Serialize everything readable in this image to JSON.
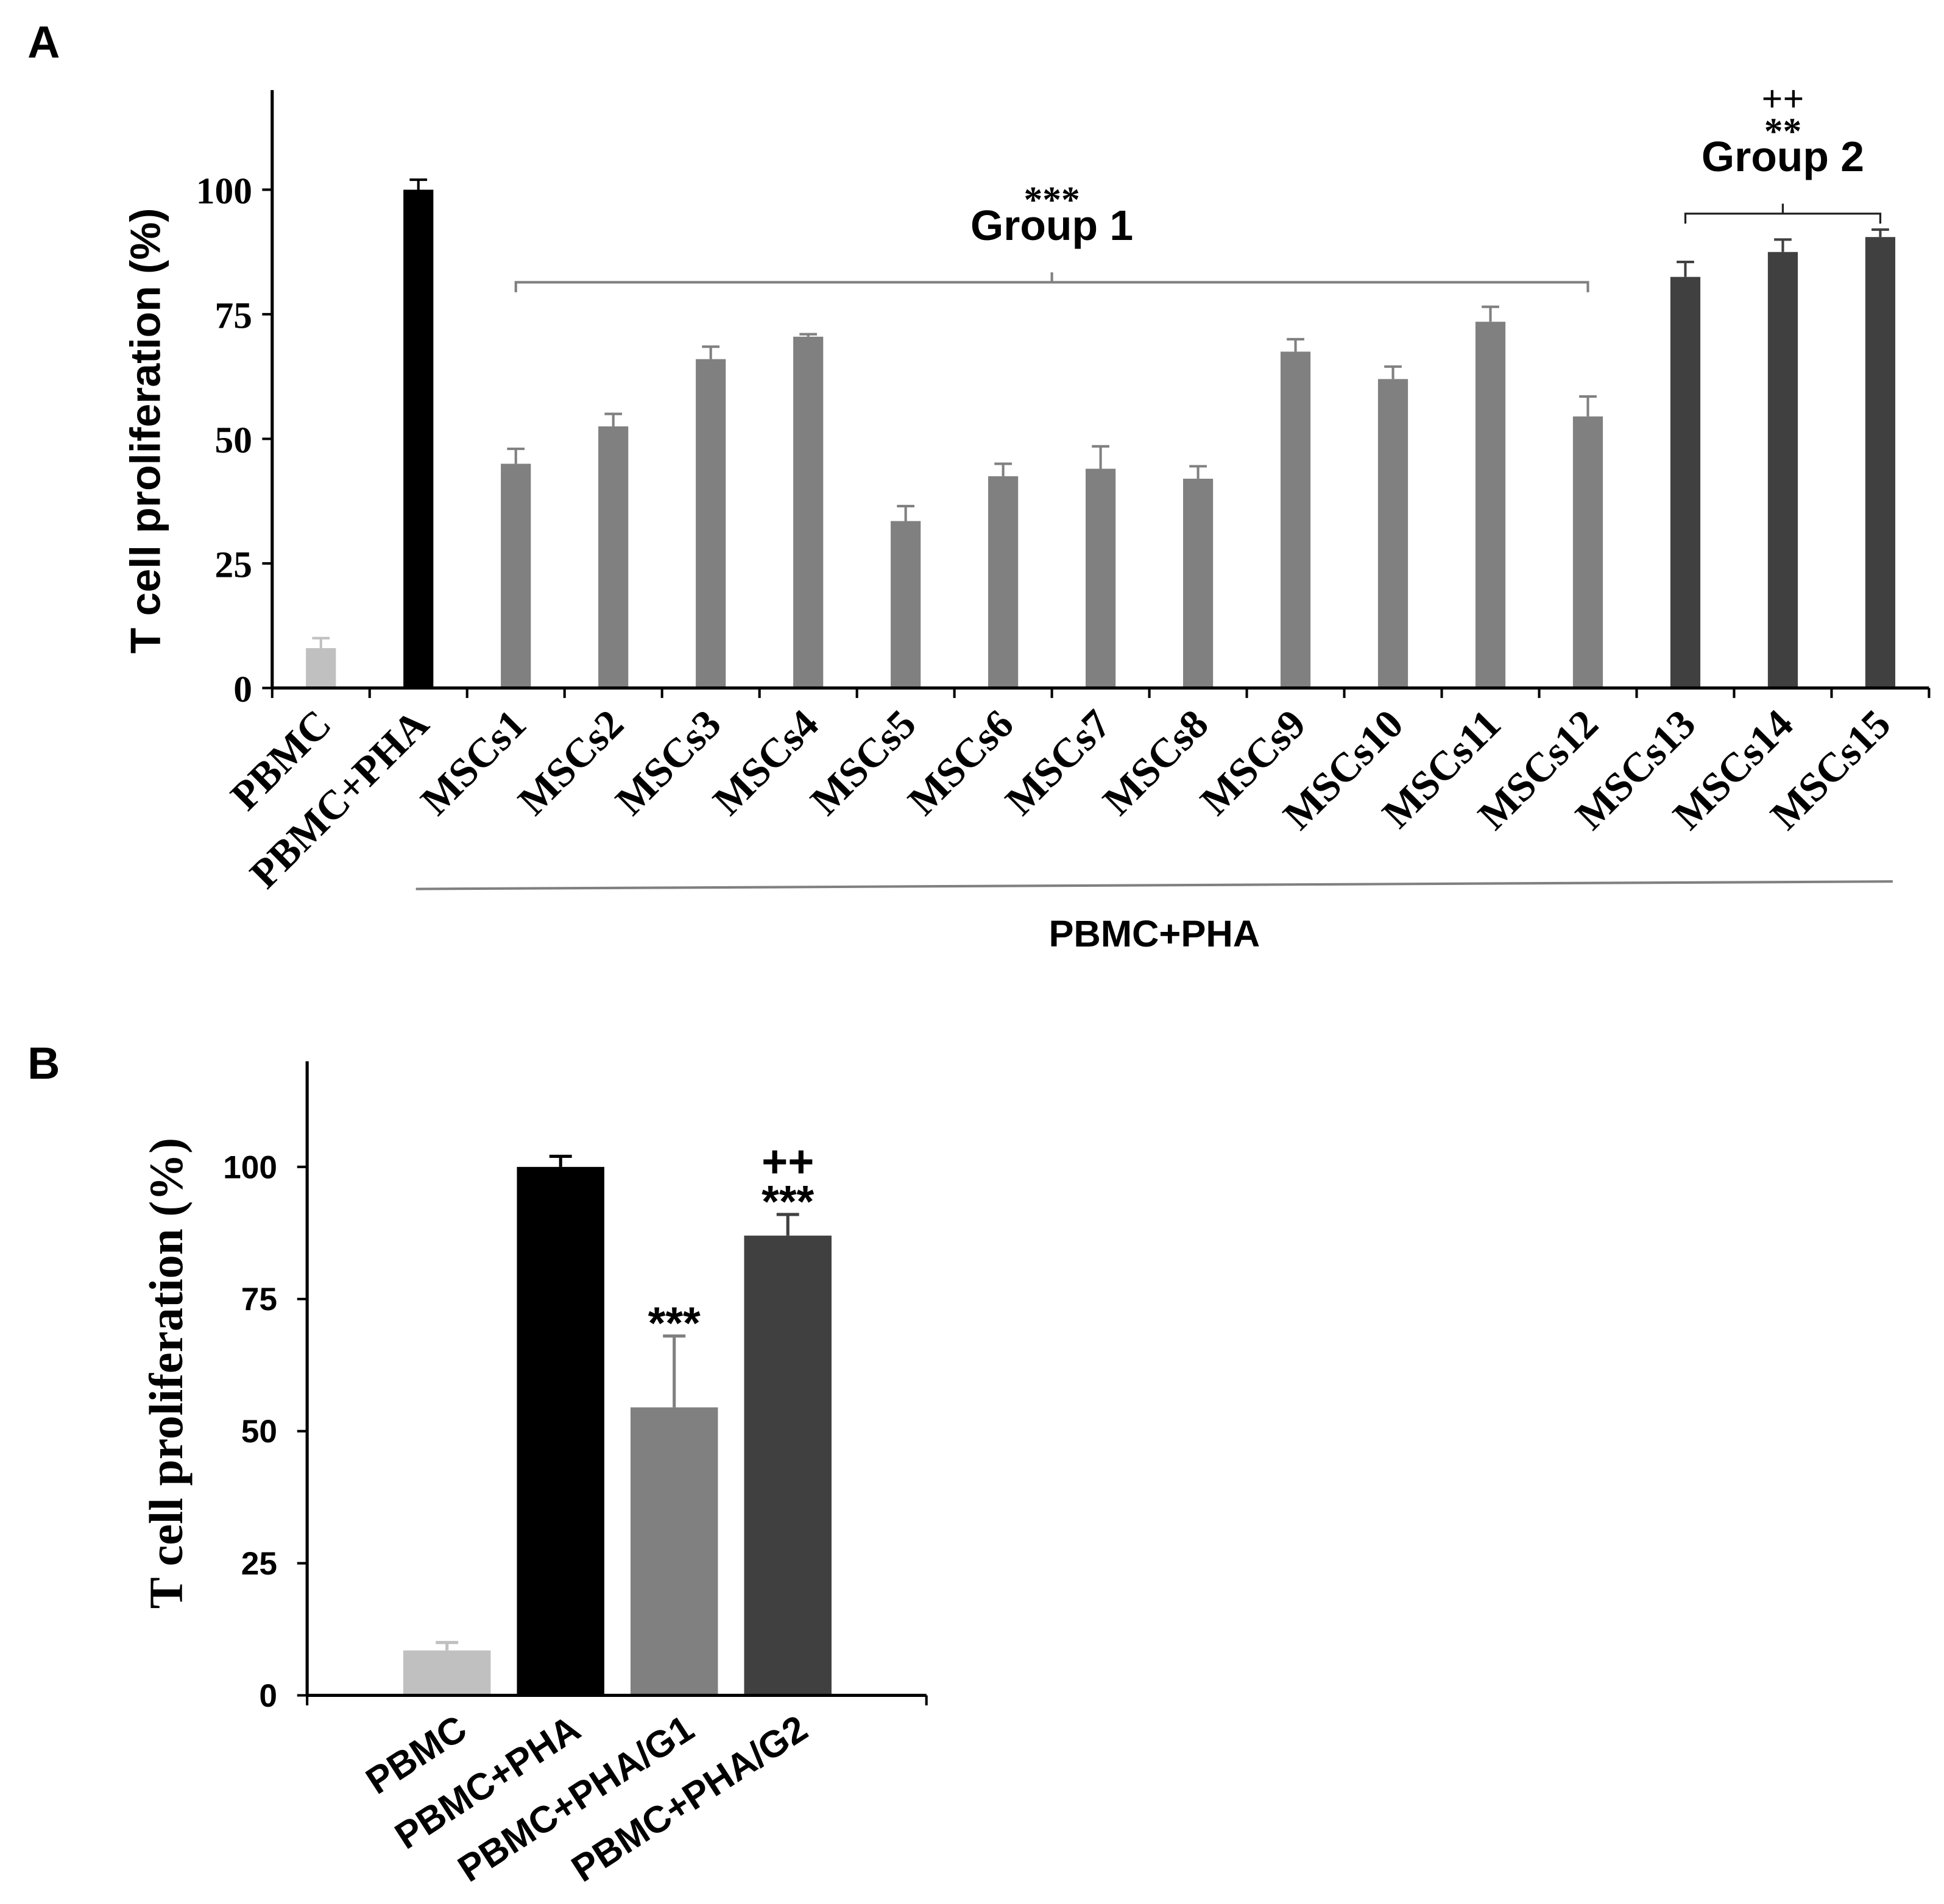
{
  "figure": {
    "panel_a_label": "A",
    "panel_b_label": "B"
  },
  "chart_data": [
    {
      "type": "bar",
      "title": "",
      "xlabel": "",
      "ylabel": "T cell proliferation (%)",
      "ylim": [
        0,
        120
      ],
      "yticks": [
        0,
        25,
        50,
        75,
        100
      ],
      "ytick_labels": [
        "0",
        "25",
        "50",
        "75",
        "100"
      ],
      "categories": [
        "PBMC",
        "PBMC+PHA",
        "MSCs1",
        "MSCs2",
        "MSCs3",
        "MSCs4",
        "MSCs5",
        "MSCs6",
        "MSCs7",
        "MSCs8",
        "MSCs9",
        "MSCs10",
        "MSCs11",
        "MSCs12",
        "MSCs13",
        "MSCs14",
        "MSCs15"
      ],
      "values": [
        8,
        100,
        45,
        52.5,
        66,
        70.5,
        33.5,
        42.5,
        44,
        42,
        67.5,
        62,
        73.5,
        54.5,
        82.5,
        87.5,
        90.5
      ],
      "errors": [
        2,
        2,
        3,
        2.5,
        2.5,
        0.5,
        3,
        2.5,
        4.5,
        2.5,
        2.5,
        2.5,
        3,
        4,
        3,
        2.5,
        1.5
      ],
      "colors": [
        "#c0c0c0",
        "#000000",
        "#808080",
        "#808080",
        "#808080",
        "#808080",
        "#808080",
        "#808080",
        "#808080",
        "#808080",
        "#808080",
        "#808080",
        "#808080",
        "#808080",
        "#404040",
        "#404040",
        "#404040"
      ],
      "brackets": [
        {
          "label": "Group 1",
          "marks": [
            "***"
          ],
          "from": 2,
          "to": 13
        },
        {
          "label": "Group 2",
          "marks": [
            "++",
            "**"
          ],
          "from": 14,
          "to": 16
        }
      ],
      "span_label": {
        "label": "PBMC+PHA",
        "span": [
          1,
          16
        ]
      }
    },
    {
      "type": "bar",
      "title": "",
      "xlabel": "",
      "ylabel": "T cell proliferation (%)",
      "ylim": [
        0,
        120
      ],
      "yticks": [
        0,
        25,
        50,
        75,
        100
      ],
      "ytick_labels": [
        "0",
        "25",
        "50",
        "75",
        "100"
      ],
      "categories": [
        "PBMC",
        "PBMC+PHA",
        "PBMC+PHA/G1",
        "PBMC+PHA/G2"
      ],
      "values": [
        8.5,
        100,
        54.5,
        87
      ],
      "errors": [
        1.5,
        2,
        13.5,
        4
      ],
      "colors": [
        "#c0c0c0",
        "#000000",
        "#808080",
        "#404040"
      ],
      "annotations": [
        {
          "index": 2,
          "marks": [
            "***"
          ]
        },
        {
          "index": 3,
          "marks": [
            "++",
            "***"
          ]
        }
      ]
    }
  ]
}
